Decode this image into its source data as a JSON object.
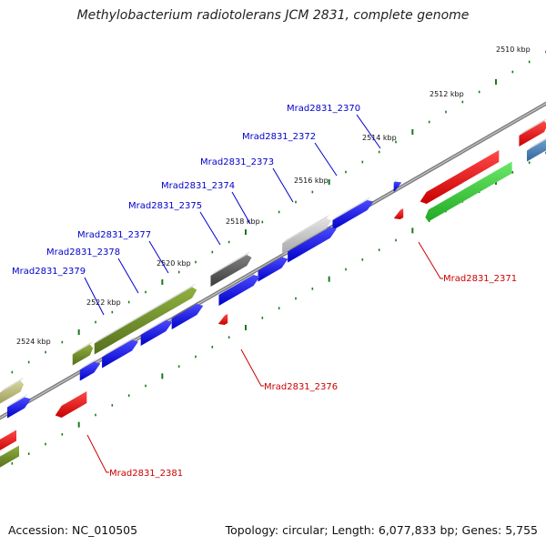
{
  "title": "Methylobacterium radiotolerans JCM 2831, complete genome",
  "footer": {
    "accession": "Accession: NC_010505",
    "summary": "Topology: circular; Length: 6,077,833 bp; Genes: 5,755"
  },
  "colors": {
    "forward_label": "#0000cc",
    "reverse_label": "#cc0000",
    "backbone": "#808080",
    "tick": "#1a7a1a"
  },
  "ticks": [
    "2510 kbp",
    "2512 kbp",
    "2514 kbp",
    "2516 kbp",
    "2518 kbp",
    "2520 kbp",
    "2522 kbp",
    "2524 kbp"
  ],
  "labels": {
    "forward": [
      "Mrad2831_2370",
      "Mrad2831_2372",
      "Mrad2831_2373",
      "Mrad2831_2374",
      "Mrad2831_2375",
      "Mrad2831_2377",
      "Mrad2831_2378",
      "Mrad2831_2379"
    ],
    "reverse": [
      "Mrad2831_2371",
      "Mrad2831_2376",
      "Mrad2831_2381"
    ]
  },
  "features": [
    {
      "name": "Mrad2831_2370",
      "strand": "forward",
      "color": "#0000ee"
    },
    {
      "name": "Mrad2831_2372",
      "strand": "forward",
      "color": "#0000ee"
    },
    {
      "name": "Mrad2831_2373",
      "strand": "forward",
      "color": "#bdbdbd"
    },
    {
      "name": "Mrad2831_2374",
      "strand": "forward",
      "color": "#0000ee"
    },
    {
      "name": "Mrad2831_2375",
      "strand": "forward",
      "color": "#555555"
    },
    {
      "name": "Mrad2831_2377",
      "strand": "forward",
      "color": "#0000ee"
    },
    {
      "name": "Mrad2831_2378",
      "strand": "forward",
      "color": "#6b8e23"
    },
    {
      "name": "Mrad2831_2379",
      "strand": "forward",
      "color": "#0000ee"
    },
    {
      "name": "Mrad2831_2371",
      "strand": "reverse",
      "color": "#ee0000"
    },
    {
      "name": "Mrad2831_2376",
      "strand": "reverse",
      "color": "#ee0000"
    },
    {
      "name": "Mrad2831_2381",
      "strand": "reverse",
      "color": "#ee0000"
    }
  ]
}
